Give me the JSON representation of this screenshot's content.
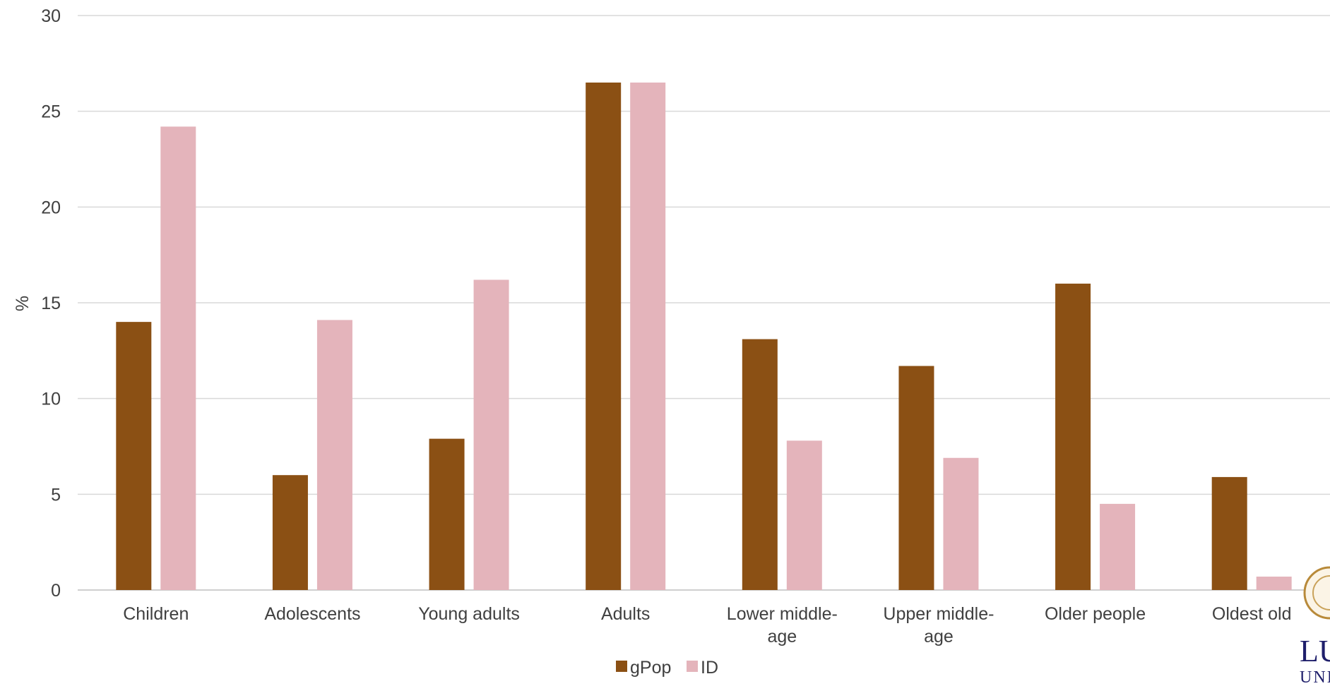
{
  "chart_data": {
    "type": "bar",
    "categories": [
      "Children",
      "Adolescents",
      "Young adults",
      "Adults",
      "Lower middle-age",
      "Upper middle-age",
      "Older people",
      "Oldest old"
    ],
    "category_lines": [
      [
        "Children"
      ],
      [
        "Adolescents"
      ],
      [
        "Young adults"
      ],
      [
        "Adults"
      ],
      [
        "Lower middle-",
        "age"
      ],
      [
        "Upper middle-",
        "age"
      ],
      [
        "Older people"
      ],
      [
        "Oldest old"
      ]
    ],
    "series": [
      {
        "name": "gPop",
        "color": "#8b5014",
        "values": [
          14.0,
          6.0,
          7.9,
          26.5,
          13.1,
          11.7,
          16.0,
          5.9
        ]
      },
      {
        "name": "ID",
        "color": "#e4b4bb",
        "values": [
          24.2,
          14.1,
          16.2,
          26.5,
          7.8,
          6.9,
          4.5,
          0.7
        ]
      }
    ],
    "ylabel": "%",
    "xlabel": "",
    "ylim": [
      0,
      30
    ],
    "yticks": [
      0,
      5,
      10,
      15,
      20,
      25,
      30
    ],
    "grid": true,
    "legend": "bottom-center"
  },
  "logo": {
    "text_line1": "LU",
    "text_line2": "UNI"
  }
}
